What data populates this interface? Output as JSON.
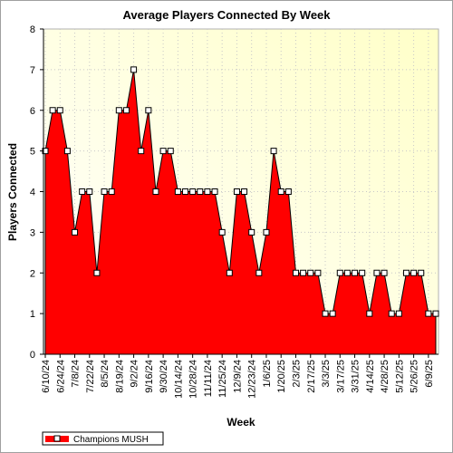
{
  "chart_data": {
    "type": "area",
    "title": "Average Players Connected By Week",
    "xlabel": "Week",
    "ylabel": "Players Connected",
    "ylim": [
      0,
      8
    ],
    "yticks": [
      0,
      1,
      2,
      3,
      4,
      5,
      6,
      7,
      8
    ],
    "grid": true,
    "legend_position": "bottom-left",
    "tick_labels": [
      "6/10/24",
      "6/24/24",
      "7/8/24",
      "7/22/24",
      "8/5/24",
      "8/19/24",
      "9/2/24",
      "9/16/24",
      "9/30/24",
      "10/14/24",
      "10/28/24",
      "11/11/24",
      "11/25/24",
      "12/9/24",
      "12/23/24",
      "1/6/25",
      "1/20/25",
      "2/3/25",
      "2/17/25",
      "3/3/25",
      "3/17/25",
      "3/31/25",
      "4/14/25",
      "4/28/25",
      "5/12/25",
      "5/26/25",
      "6/9/25"
    ],
    "series": [
      {
        "name": "Champions MUSH",
        "color": "#ff0000",
        "values": [
          5,
          6,
          6,
          5,
          3,
          4,
          4,
          2,
          4,
          4,
          6,
          6,
          7,
          5,
          6,
          4,
          5,
          5,
          4,
          4,
          4,
          4,
          4,
          4,
          3,
          2,
          4,
          4,
          3,
          2,
          3,
          5,
          4,
          4,
          2,
          2,
          2,
          2,
          1,
          1,
          2,
          2,
          2,
          2,
          1,
          2,
          2,
          1,
          1,
          2,
          2,
          2,
          1,
          1
        ]
      }
    ]
  }
}
